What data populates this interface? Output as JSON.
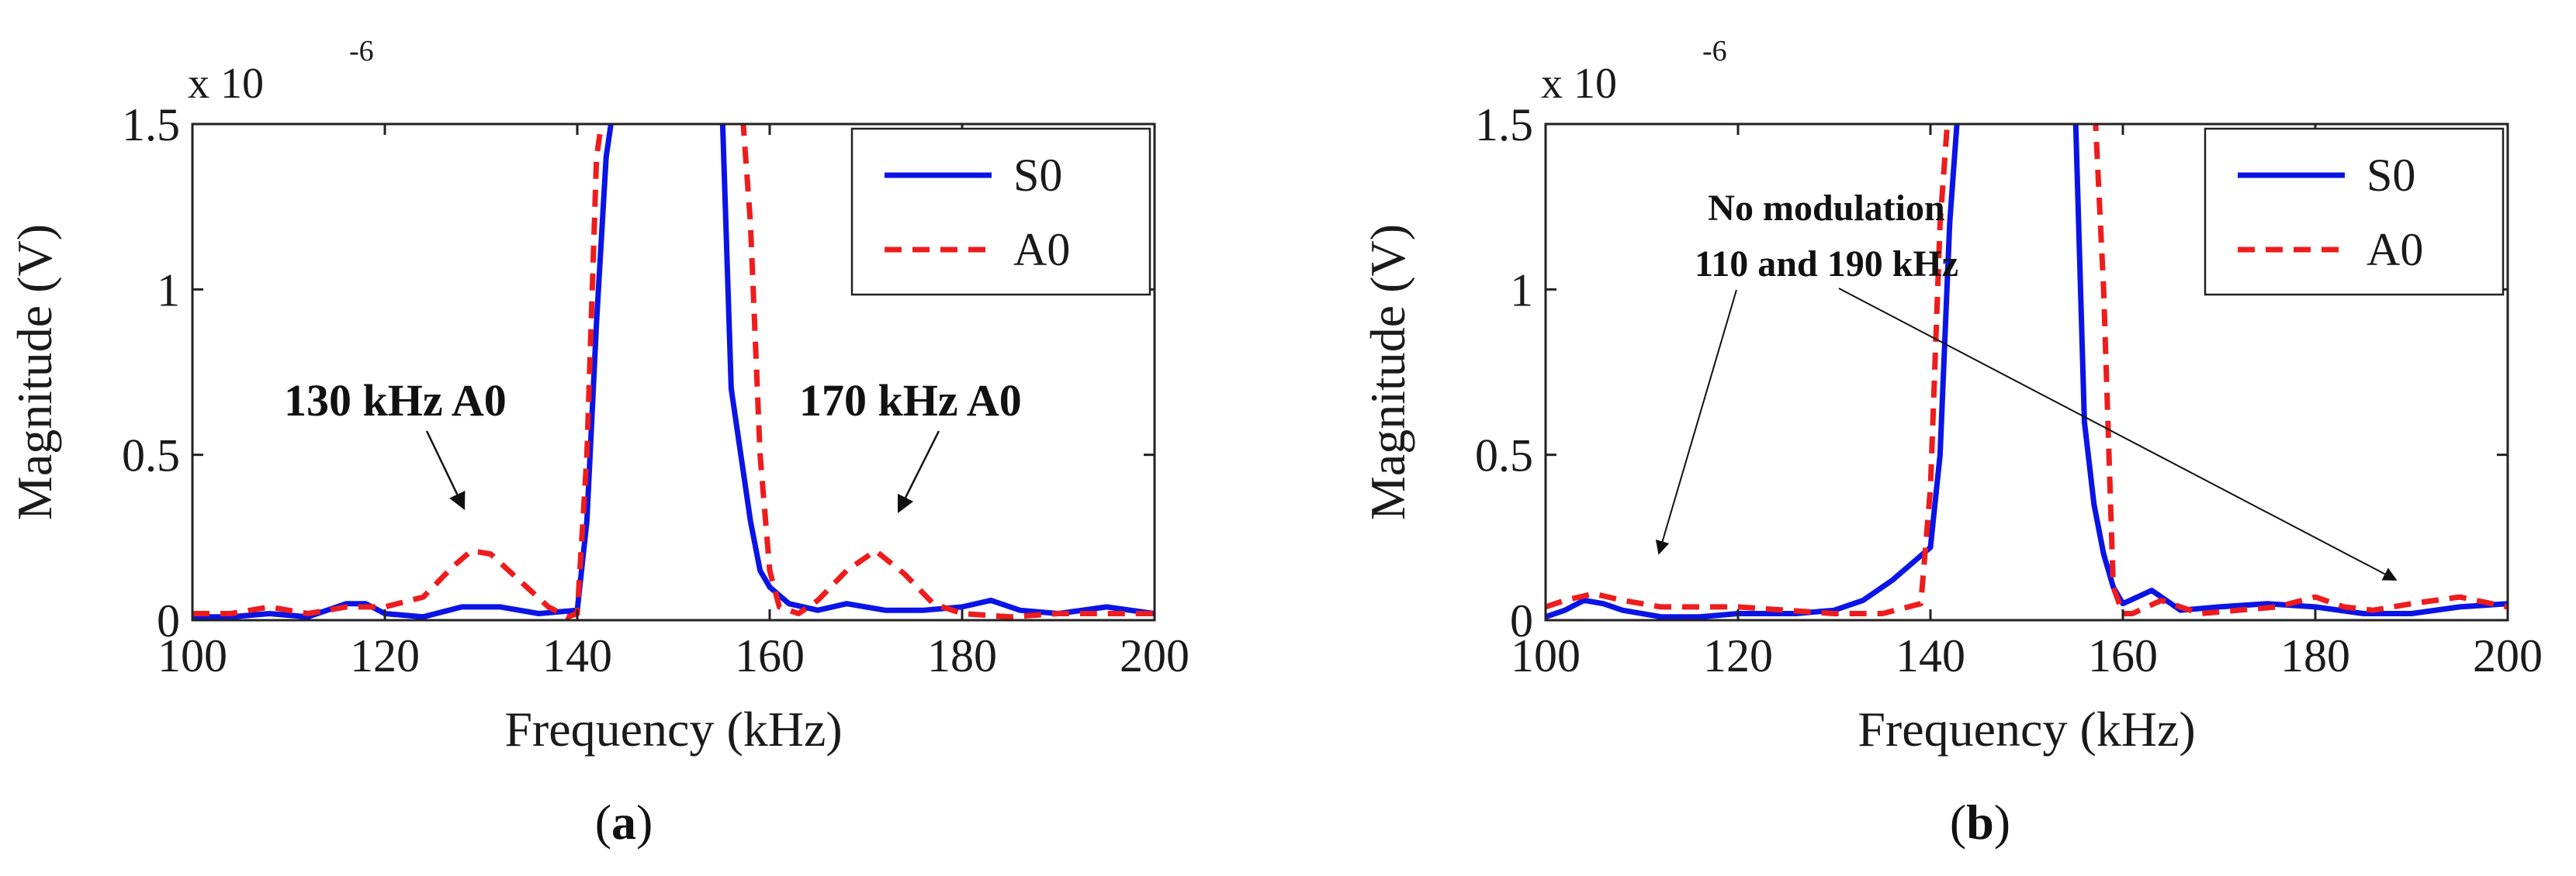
{
  "chart_data": [
    {
      "type": "line",
      "panel": "a",
      "caption": "a",
      "xlabel": "Frequency (kHz)",
      "ylabel": "Magnitude (V)",
      "multiplier": "x 10",
      "multiplier_exp": "-6",
      "xlim": [
        100,
        200
      ],
      "ylim": [
        0,
        1.5
      ],
      "xticks": [
        100,
        120,
        140,
        160,
        180,
        200
      ],
      "xtick_labels": [
        "100",
        "120",
        "140",
        "160",
        "180",
        "200"
      ],
      "yticks": [
        0,
        0.5,
        1,
        1.5
      ],
      "ytick_labels": [
        "0",
        "0.5",
        "1",
        "1.5"
      ],
      "legend_position": "top-right",
      "series": [
        {
          "name": "S0",
          "color": "#0a14e6",
          "dash": "solid",
          "x": [
            100,
            104,
            108,
            112,
            116,
            118,
            120,
            124,
            128,
            132,
            136,
            140,
            141,
            142,
            143,
            144,
            155,
            156,
            157,
            158,
            159,
            160,
            162,
            165,
            168,
            172,
            176,
            180,
            183,
            186,
            190,
            195,
            200
          ],
          "y": [
            0.01,
            0.01,
            0.02,
            0.01,
            0.05,
            0.05,
            0.02,
            0.01,
            0.04,
            0.04,
            0.02,
            0.03,
            0.3,
            0.9,
            1.4,
            1.6,
            1.6,
            0.7,
            0.5,
            0.3,
            0.15,
            0.1,
            0.05,
            0.03,
            0.05,
            0.03,
            0.03,
            0.04,
            0.06,
            0.03,
            0.02,
            0.04,
            0.02
          ]
        },
        {
          "name": "A0",
          "color": "#ee1c1c",
          "dash": "dashed",
          "x": [
            100,
            104,
            108,
            112,
            116,
            120,
            124,
            127,
            129,
            131,
            134,
            137,
            139,
            140,
            141,
            142,
            143,
            157,
            158,
            159,
            160,
            161,
            163,
            165,
            168,
            171,
            174,
            177,
            180,
            185,
            190,
            195,
            200
          ],
          "y": [
            0.02,
            0.02,
            0.04,
            0.02,
            0.04,
            0.04,
            0.07,
            0.16,
            0.21,
            0.2,
            0.12,
            0.04,
            0.01,
            0.02,
            0.5,
            1.4,
            1.6,
            1.6,
            1.2,
            0.5,
            0.15,
            0.04,
            0.02,
            0.06,
            0.15,
            0.21,
            0.14,
            0.05,
            0.02,
            0.01,
            0.02,
            0.02,
            0.02
          ]
        }
      ],
      "annotations": [
        {
          "text": "130 kHz A0",
          "target": [
            129,
            0.25
          ]
        },
        {
          "text": "170 kHz A0",
          "target": [
            171,
            0.25
          ]
        }
      ]
    },
    {
      "type": "line",
      "panel": "b",
      "caption": "b",
      "xlabel": "Frequency (kHz)",
      "ylabel": "Magnitude (V)",
      "multiplier": "x 10",
      "multiplier_exp": "-6",
      "xlim": [
        100,
        200
      ],
      "ylim": [
        0,
        1.5
      ],
      "xticks": [
        100,
        120,
        140,
        160,
        180,
        200
      ],
      "xtick_labels": [
        "100",
        "120",
        "140",
        "160",
        "180",
        "200"
      ],
      "yticks": [
        0,
        0.5,
        1,
        1.5
      ],
      "ytick_labels": [
        "0",
        "0.5",
        "1",
        "1.5"
      ],
      "legend_position": "top-right",
      "series": [
        {
          "name": "S0",
          "color": "#0a14e6",
          "dash": "solid",
          "x": [
            100,
            102,
            104,
            106,
            108,
            112,
            116,
            120,
            126,
            130,
            133,
            136,
            138,
            140,
            141,
            142,
            143,
            155,
            156,
            157,
            158,
            159,
            160,
            163,
            166,
            170,
            175,
            180,
            185,
            190,
            195,
            200
          ],
          "y": [
            0.01,
            0.03,
            0.06,
            0.05,
            0.03,
            0.01,
            0.01,
            0.02,
            0.02,
            0.03,
            0.06,
            0.12,
            0.17,
            0.22,
            0.5,
            1.2,
            1.6,
            1.6,
            0.6,
            0.35,
            0.2,
            0.1,
            0.05,
            0.09,
            0.03,
            0.04,
            0.05,
            0.04,
            0.02,
            0.02,
            0.04,
            0.05
          ]
        },
        {
          "name": "A0",
          "color": "#ee1c1c",
          "dash": "dashed",
          "x": [
            100,
            102,
            105,
            108,
            112,
            120,
            125,
            130,
            135,
            139,
            140,
            141,
            142,
            143,
            157,
            158,
            159,
            160,
            161,
            164,
            168,
            172,
            176,
            180,
            183,
            186,
            190,
            195,
            200
          ],
          "y": [
            0.04,
            0.06,
            0.08,
            0.06,
            0.04,
            0.04,
            0.03,
            0.02,
            0.02,
            0.05,
            0.4,
            1.2,
            1.6,
            1.6,
            1.6,
            1.0,
            0.1,
            0.02,
            0.02,
            0.06,
            0.02,
            0.03,
            0.04,
            0.07,
            0.04,
            0.03,
            0.05,
            0.07,
            0.04
          ]
        }
      ],
      "annotations": [
        {
          "text": "No modulation",
          "target": [
            112,
            0.07
          ]
        },
        {
          "text": "110 and 190 kHz",
          "target": [
            187,
            0.05
          ]
        }
      ]
    }
  ]
}
